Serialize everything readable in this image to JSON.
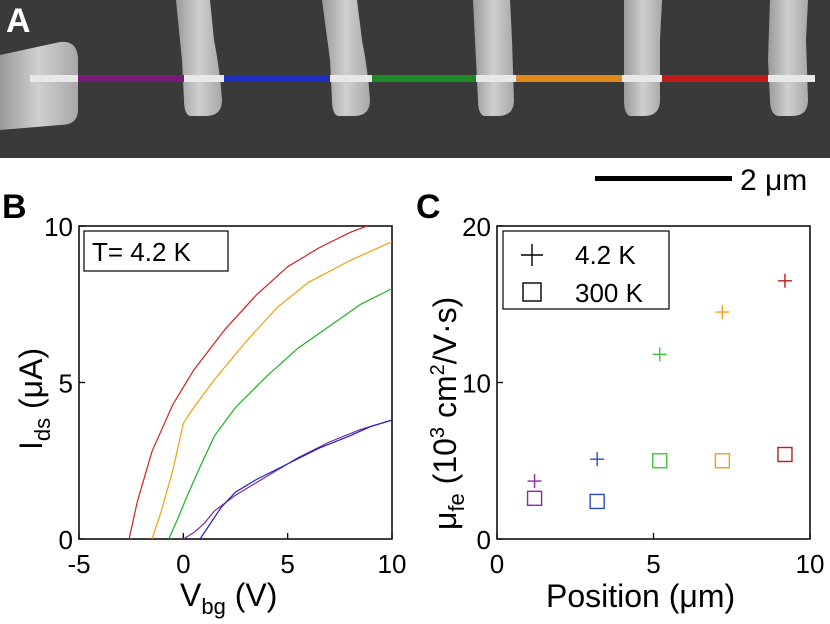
{
  "panel_a": {
    "letter": "A",
    "scale_bar_label": "2 μm",
    "channel_colors": [
      "#7a1a7a",
      "#1f2fbf",
      "#1d8a2a",
      "#e08a1a",
      "#c41a1a"
    ]
  },
  "chart_data": [
    {
      "panel": "B",
      "type": "line",
      "title": "",
      "annotation": "T= 4.2 K",
      "xlabel_main": "V",
      "xlabel_sub": "bg",
      "xlabel_unit": " (V)",
      "ylabel_main": "I",
      "ylabel_sub": "ds",
      "ylabel_unit": " (μA)",
      "xlim": [
        -5,
        10
      ],
      "ylim": [
        0,
        10
      ],
      "xticks": [
        "-5",
        "0",
        "5",
        "10"
      ],
      "yticks": [
        "0",
        "5",
        "10"
      ],
      "series": [
        {
          "color": "#d42020",
          "x": [
            -2.6,
            -2.2,
            -1.5,
            -0.5,
            0.5,
            2,
            3.5,
            5,
            6.5,
            8,
            10
          ],
          "y": [
            0,
            1.2,
            2.8,
            4.3,
            5.4,
            6.7,
            7.8,
            8.7,
            9.3,
            9.8,
            10.3
          ]
        },
        {
          "color": "#f0a010",
          "x": [
            -1.5,
            -1.1,
            -0.5,
            0,
            0.5,
            1.5,
            3,
            4.5,
            6,
            8,
            10
          ],
          "y": [
            0,
            0.8,
            2.2,
            3.7,
            4.2,
            5.1,
            6.3,
            7.4,
            8.2,
            8.9,
            9.5
          ]
        },
        {
          "color": "#20b020",
          "x": [
            -0.7,
            -0.3,
            0.2,
            0.8,
            1.5,
            2.5,
            4,
            5.5,
            7,
            8.5,
            10
          ],
          "y": [
            0,
            0.6,
            1.4,
            2.3,
            3.3,
            4.2,
            5.2,
            6.1,
            6.8,
            7.5,
            8.0
          ]
        },
        {
          "color": "#7a2a9a",
          "x": [
            0,
            0.5,
            1,
            1.5,
            2.5,
            4,
            5.5,
            7,
            8.5,
            10
          ],
          "y": [
            0,
            0.2,
            0.5,
            0.9,
            1.4,
            2.0,
            2.6,
            3.1,
            3.5,
            3.8
          ]
        },
        {
          "color": "#2020c0",
          "x": [
            0.8,
            1.2,
            1.8,
            2.5,
            3.5,
            5,
            6.5,
            8,
            9,
            10
          ],
          "y": [
            0,
            0.4,
            1.0,
            1.5,
            1.9,
            2.4,
            2.9,
            3.3,
            3.6,
            3.8
          ]
        }
      ]
    },
    {
      "panel": "C",
      "type": "scatter",
      "title": "",
      "xlabel": "Position (μm)",
      "ylabel_main": "μ",
      "ylabel_sub": "fe",
      "ylabel_rest": " (10",
      "ylabel_sup1": "3",
      "ylabel_mid": " cm",
      "ylabel_sup2": "2",
      "ylabel_end": "/V·s)",
      "xlim": [
        0,
        10
      ],
      "ylim": [
        0,
        20
      ],
      "xticks": [
        "0",
        "5",
        "10"
      ],
      "yticks": [
        "0",
        "10",
        "20"
      ],
      "legend_position": "top-left",
      "series": [
        {
          "name": "4.2 K",
          "marker": "plus",
          "points": [
            {
              "x": 1.2,
              "y": 3.7,
              "color": "#8a2aaa"
            },
            {
              "x": 3.2,
              "y": 5.1,
              "color": "#2a4ad0"
            },
            {
              "x": 5.2,
              "y": 11.8,
              "color": "#3ac83a"
            },
            {
              "x": 7.2,
              "y": 14.5,
              "color": "#f0a020"
            },
            {
              "x": 9.2,
              "y": 16.5,
              "color": "#c41a1a"
            }
          ]
        },
        {
          "name": "300 K",
          "marker": "square",
          "points": [
            {
              "x": 1.2,
              "y": 2.6,
              "color": "#8a2aaa"
            },
            {
              "x": 3.2,
              "y": 2.4,
              "color": "#2a4ad0"
            },
            {
              "x": 5.2,
              "y": 5.0,
              "color": "#3ac83a"
            },
            {
              "x": 7.2,
              "y": 5.0,
              "color": "#f0a020"
            },
            {
              "x": 9.2,
              "y": 5.4,
              "color": "#c41a1a"
            }
          ]
        }
      ]
    }
  ]
}
